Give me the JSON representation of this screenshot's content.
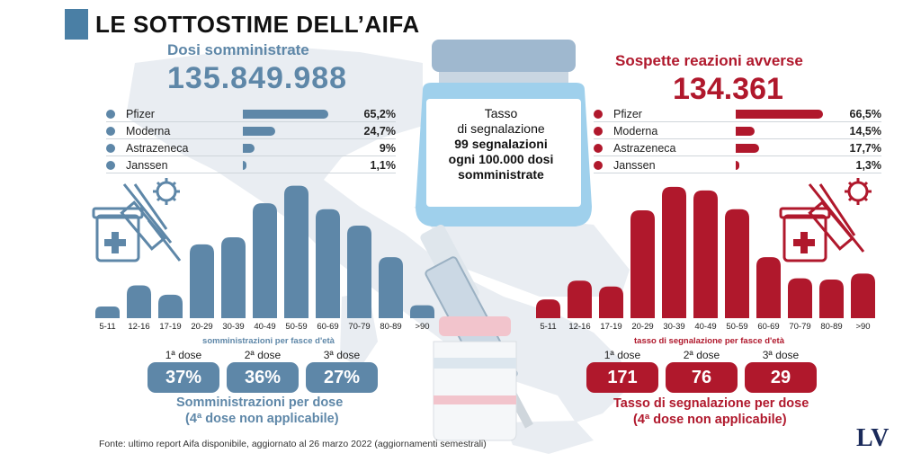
{
  "title": "LE SOTTOSTIME DELL’AIFA",
  "left": {
    "subtitle": "Dosi somministrate",
    "total": "135.849.988",
    "manufacturers": [
      {
        "name": "Pfizer",
        "pct": "65,2%",
        "value": 65.2
      },
      {
        "name": "Moderna",
        "pct": "24,7%",
        "value": 24.7
      },
      {
        "name": "Astrazeneca",
        "pct": "9%",
        "value": 9
      },
      {
        "name": "Janssen",
        "pct": "1,1%",
        "value": 1.1
      }
    ],
    "age_caption": "somministrazioni per fasce d'età",
    "doses": [
      {
        "label": "1ª dose",
        "value": "37%"
      },
      {
        "label": "2ª dose",
        "value": "36%"
      },
      {
        "label": "3ª dose",
        "value": "27%"
      }
    ],
    "caption1": "Somministrazioni per dose",
    "caption2": "(4ª dose non applicabile)"
  },
  "right": {
    "subtitle": "Sospette reazioni avverse",
    "total": "134.361",
    "manufacturers": [
      {
        "name": "Pfizer",
        "pct": "66,5%",
        "value": 66.5
      },
      {
        "name": "Moderna",
        "pct": "14,5%",
        "value": 14.5
      },
      {
        "name": "Astrazeneca",
        "pct": "17,7%",
        "value": 17.7
      },
      {
        "name": "Janssen",
        "pct": "1,3%",
        "value": 1.3
      }
    ],
    "age_caption": "tasso di segnalazione per fasce d'età",
    "doses": [
      {
        "label": "1ª dose",
        "value": "171"
      },
      {
        "label": "2ª dose",
        "value": "76"
      },
      {
        "label": "3ª dose",
        "value": "29"
      }
    ],
    "caption1": "Tasso di segnalazione per dose",
    "caption2": "(4ª dose non applicabile)"
  },
  "vial": {
    "line1": "Tasso",
    "line2": "di segnalazione",
    "line3": "99 segnalazioni",
    "line4": "ogni 100.000 dosi",
    "line5": "somministrate"
  },
  "footer": "Fonte: ultimo report Aifa disponibile, aggiornato al 26 marzo 2022 (aggiornamenti semestrali)",
  "logo": {
    "l": "L",
    "v": "V"
  },
  "colors": {
    "blue": "#5e87a8",
    "red": "#b0182c"
  },
  "chart_data": [
    {
      "type": "bar",
      "categories": [
        "5-11",
        "12-16",
        "17-19",
        "20-29",
        "30-39",
        "40-49",
        "50-59",
        "60-69",
        "70-79",
        "80-89",
        ">90"
      ],
      "values": [
        10,
        28,
        20,
        63,
        69,
        98,
        113,
        93,
        79,
        52,
        11
      ],
      "xlabel": "somministrazioni per fasce d'età",
      "color": "#5e87a8"
    },
    {
      "type": "bar",
      "categories": [
        "5-11",
        "12-16",
        "17-19",
        "20-29",
        "30-39",
        "40-49",
        "50-59",
        "60-69",
        "70-79",
        "80-89",
        ">90"
      ],
      "values": [
        16,
        32,
        27,
        92,
        112,
        109,
        93,
        52,
        34,
        33,
        38
      ],
      "xlabel": "tasso di segnalazione per fasce d'età",
      "color": "#b0182c"
    },
    {
      "type": "bar",
      "title": "Dosi somministrate",
      "categories": [
        "Pfizer",
        "Moderna",
        "Astrazeneca",
        "Janssen"
      ],
      "values": [
        65.2,
        24.7,
        9,
        1.1
      ],
      "color": "#5e87a8"
    },
    {
      "type": "bar",
      "title": "Sospette reazioni avverse",
      "categories": [
        "Pfizer",
        "Moderna",
        "Astrazeneca",
        "Janssen"
      ],
      "values": [
        66.5,
        14.5,
        17.7,
        1.3
      ],
      "color": "#b0182c"
    }
  ]
}
